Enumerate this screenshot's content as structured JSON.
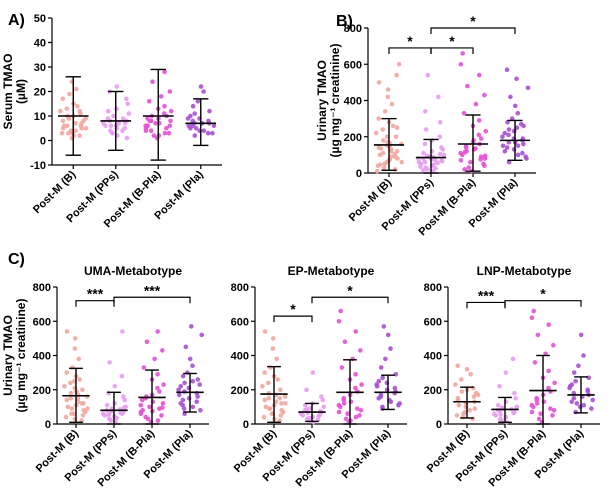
{
  "chart_data": [
    {
      "id": "A",
      "panel_label": "A)",
      "type": "scatter",
      "title": "",
      "ylabel": [
        "Serum TMAO",
        "(µM)"
      ],
      "ylim": [
        -10,
        50
      ],
      "yticks": [
        -10,
        0,
        10,
        20,
        30,
        40,
        50
      ],
      "categories": [
        "Post-M (B)",
        "Post-M (PPs)",
        "Post-M (B-Pla)",
        "Post-M (Pla)"
      ],
      "colors": [
        "#f4a6a0",
        "#e79df0",
        "#e84fd6",
        "#a84fd6"
      ],
      "summary": [
        {
          "mean": 10,
          "sd_low": -6,
          "sd_high": 26
        },
        {
          "mean": 8,
          "sd_low": -4,
          "sd_high": 20
        },
        {
          "mean": 10,
          "sd_low": -8,
          "sd_high": 29
        },
        {
          "mean": 7,
          "sd_low": -2,
          "sd_high": 17
        }
      ],
      "points": [
        [
          2,
          3,
          4,
          5,
          6,
          7,
          8,
          9,
          10,
          11,
          12,
          13,
          14,
          15,
          17,
          19,
          21,
          24,
          3,
          5,
          6,
          8,
          9,
          10,
          4,
          6,
          7,
          2,
          1,
          3,
          5,
          12
        ],
        [
          2,
          3,
          4,
          5,
          6,
          7,
          8,
          9,
          10,
          11,
          12,
          13,
          15,
          17,
          20,
          22,
          5,
          6,
          7,
          8,
          9,
          3,
          4,
          1,
          6,
          7
        ],
        [
          1,
          2,
          3,
          4,
          5,
          6,
          7,
          8,
          9,
          10,
          11,
          12,
          13,
          14,
          16,
          18,
          20,
          24,
          28,
          5,
          6,
          7,
          8,
          9,
          10,
          4,
          3,
          2,
          6,
          8
        ],
        [
          2,
          3,
          4,
          5,
          6,
          7,
          8,
          9,
          10,
          11,
          12,
          14,
          16,
          20,
          22,
          5,
          6,
          7,
          8,
          3,
          4,
          6,
          7,
          9
        ]
      ],
      "brackets": []
    },
    {
      "id": "B",
      "panel_label": "B)",
      "type": "scatter",
      "title": "",
      "ylabel": [
        "Urinary TMAO",
        "(µg mg⁻¹ creatinine)"
      ],
      "ylim": [
        0,
        800
      ],
      "yticks": [
        0,
        200,
        400,
        600,
        800
      ],
      "categories": [
        "Post-M (B)",
        "Post-M (PPs)",
        "Post-M (B-Pla)",
        "Post-M (Pla)"
      ],
      "colors": [
        "#f4a6a0",
        "#e79df0",
        "#e84fd6",
        "#a84fd6"
      ],
      "summary": [
        {
          "mean": 155,
          "sd_low": 15,
          "sd_high": 300
        },
        {
          "mean": 85,
          "sd_low": 0,
          "sd_high": 185
        },
        {
          "mean": 160,
          "sd_low": 10,
          "sd_high": 320
        },
        {
          "mean": 180,
          "sd_low": 70,
          "sd_high": 290
        }
      ],
      "points": [
        [
          20,
          40,
          60,
          80,
          100,
          120,
          140,
          160,
          180,
          200,
          220,
          240,
          260,
          280,
          300,
          340,
          380,
          420,
          460,
          500,
          540,
          600,
          50,
          70,
          90,
          110,
          130,
          150,
          170,
          30,
          60,
          90,
          120,
          150,
          200,
          250,
          10,
          45,
          75,
          105,
          135,
          165
        ],
        [
          10,
          20,
          30,
          40,
          50,
          60,
          70,
          80,
          90,
          100,
          110,
          120,
          130,
          140,
          160,
          180,
          200,
          240,
          280,
          340,
          420,
          540,
          55,
          65,
          75,
          85,
          95,
          105,
          45,
          35,
          25,
          15,
          60,
          70,
          80,
          90
        ],
        [
          10,
          30,
          50,
          70,
          90,
          110,
          130,
          150,
          170,
          190,
          210,
          230,
          260,
          290,
          330,
          380,
          430,
          480,
          540,
          600,
          660,
          60,
          80,
          100,
          120,
          140,
          160,
          180,
          40,
          20,
          75,
          95,
          115,
          135
        ],
        [
          60,
          80,
          100,
          120,
          140,
          160,
          180,
          200,
          220,
          240,
          260,
          280,
          300,
          330,
          370,
          420,
          470,
          520,
          570,
          110,
          130,
          150,
          170,
          190,
          210,
          90,
          150,
          170,
          190,
          230,
          250,
          270
        ]
      ],
      "brackets": [
        {
          "from": 0,
          "to": 1,
          "y": 690,
          "label": "*"
        },
        {
          "from": 1,
          "to": 2,
          "y": 690,
          "label": "*"
        },
        {
          "from": 1,
          "to": 3,
          "y": 800,
          "label": "*"
        }
      ]
    },
    {
      "id": "C1",
      "panel_label": "C)",
      "type": "scatter",
      "title": "UMA-Metabotype",
      "ylabel": [
        "Urinary TMAO",
        "(µg mg⁻¹ creatinine)"
      ],
      "ylim": [
        0,
        800
      ],
      "yticks": [
        0,
        200,
        400,
        600,
        800
      ],
      "categories": [
        "Post-M (B)",
        "Post-M (PPs)",
        "Post-M (B-Pla)",
        "Post-M (Pla)"
      ],
      "colors": [
        "#f4a6a0",
        "#e79df0",
        "#e84fd6",
        "#a84fd6"
      ],
      "summary": [
        {
          "mean": 165,
          "sd_low": 10,
          "sd_high": 325
        },
        {
          "mean": 80,
          "sd_low": 0,
          "sd_high": 185
        },
        {
          "mean": 155,
          "sd_low": 0,
          "sd_high": 315
        },
        {
          "mean": 185,
          "sd_low": 70,
          "sd_high": 295
        }
      ],
      "points": [
        [
          20,
          40,
          60,
          80,
          100,
          120,
          140,
          160,
          180,
          200,
          220,
          240,
          260,
          280,
          300,
          330,
          380,
          440,
          500,
          540,
          50,
          70,
          90,
          110,
          130,
          150,
          170,
          190,
          30,
          60,
          90,
          120,
          150,
          210,
          250
        ],
        [
          10,
          20,
          30,
          40,
          50,
          60,
          70,
          80,
          90,
          100,
          110,
          120,
          140,
          160,
          180,
          220,
          280,
          360,
          540,
          55,
          65,
          75,
          85,
          95,
          45,
          35,
          25,
          60
        ],
        [
          10,
          30,
          50,
          70,
          90,
          110,
          130,
          150,
          170,
          190,
          210,
          230,
          260,
          290,
          330,
          380,
          430,
          480,
          540,
          60,
          80,
          100,
          120,
          140,
          160,
          40,
          20,
          75,
          95
        ],
        [
          60,
          80,
          100,
          120,
          140,
          160,
          180,
          200,
          220,
          240,
          260,
          280,
          300,
          340,
          380,
          450,
          520,
          570,
          110,
          130,
          150,
          170,
          190,
          210,
          90,
          230,
          250
        ]
      ],
      "brackets": [
        {
          "from": 0,
          "to": 1,
          "y": 720,
          "label": "***"
        },
        {
          "from": 1,
          "to": 3,
          "y": 740,
          "label": "***"
        }
      ]
    },
    {
      "id": "C2",
      "panel_label": "",
      "type": "scatter",
      "title": "EP-Metabotype",
      "ylabel": [],
      "ylim": [
        0,
        800
      ],
      "yticks": [
        0,
        200,
        400,
        600,
        800
      ],
      "categories": [
        "Post-M (B)",
        "Post-M (PPs)",
        "Post-M (B-Pla)",
        "Post-M (Pla)"
      ],
      "colors": [
        "#f4a6a0",
        "#e79df0",
        "#e84fd6",
        "#a84fd6"
      ],
      "summary": [
        {
          "mean": 175,
          "sd_low": 10,
          "sd_high": 335
        },
        {
          "mean": 70,
          "sd_low": 15,
          "sd_high": 120
        },
        {
          "mean": 185,
          "sd_low": 0,
          "sd_high": 375
        },
        {
          "mean": 185,
          "sd_low": 85,
          "sd_high": 285
        }
      ],
      "points": [
        [
          20,
          40,
          60,
          80,
          100,
          120,
          140,
          160,
          180,
          200,
          220,
          240,
          260,
          280,
          300,
          330,
          380,
          440,
          500,
          540,
          50,
          70,
          90,
          110,
          130,
          150,
          170,
          30,
          60,
          90,
          120,
          150
        ],
        [
          10,
          20,
          30,
          40,
          50,
          60,
          70,
          80,
          90,
          100,
          110,
          120,
          140,
          160,
          200,
          300,
          55,
          65,
          75,
          85,
          45,
          35,
          25
        ],
        [
          10,
          30,
          50,
          70,
          90,
          110,
          130,
          150,
          170,
          190,
          210,
          230,
          260,
          290,
          330,
          380,
          430,
          480,
          540,
          600,
          660,
          60,
          80,
          100,
          120,
          140,
          40,
          20
        ],
        [
          90,
          110,
          130,
          150,
          170,
          190,
          210,
          230,
          250,
          270,
          290,
          330,
          380,
          440,
          520,
          570,
          120,
          140,
          160,
          180,
          200,
          220,
          100,
          240
        ]
      ],
      "brackets": [
        {
          "from": 0,
          "to": 1,
          "y": 630,
          "label": "*"
        },
        {
          "from": 1,
          "to": 3,
          "y": 740,
          "label": "*"
        }
      ]
    },
    {
      "id": "C3",
      "panel_label": "",
      "type": "scatter",
      "title": "LNP-Metabotype",
      "ylabel": [],
      "ylim": [
        0,
        800
      ],
      "yticks": [
        0,
        200,
        400,
        600,
        800
      ],
      "categories": [
        "Post-M (B)",
        "Post-M (PPs)",
        "Post-M (B-Pla)",
        "Post-M (Pla)"
      ],
      "colors": [
        "#f4a6a0",
        "#e79df0",
        "#e84fd6",
        "#a84fd6"
      ],
      "summary": [
        {
          "mean": 130,
          "sd_low": 35,
          "sd_high": 215
        },
        {
          "mean": 85,
          "sd_low": 10,
          "sd_high": 155
        },
        {
          "mean": 195,
          "sd_low": 0,
          "sd_high": 400
        },
        {
          "mean": 170,
          "sd_low": 65,
          "sd_high": 275
        }
      ],
      "points": [
        [
          30,
          50,
          70,
          90,
          110,
          130,
          150,
          170,
          190,
          210,
          230,
          260,
          290,
          320,
          340,
          60,
          80,
          100,
          120,
          140,
          160,
          180,
          40,
          200
        ],
        [
          10,
          20,
          30,
          40,
          50,
          60,
          70,
          80,
          90,
          100,
          110,
          130,
          150,
          180,
          220,
          300,
          380,
          55,
          65,
          75,
          85,
          95
        ],
        [
          10,
          30,
          50,
          70,
          90,
          110,
          130,
          150,
          170,
          190,
          210,
          240,
          270,
          310,
          360,
          410,
          460,
          520,
          580,
          620,
          660,
          60,
          80,
          100,
          120,
          140
        ],
        [
          70,
          90,
          110,
          130,
          150,
          170,
          190,
          210,
          230,
          250,
          270,
          300,
          340,
          400,
          520,
          120,
          140,
          160,
          180,
          200,
          100,
          220
        ]
      ],
      "brackets": [
        {
          "from": 0,
          "to": 1,
          "y": 710,
          "label": "***"
        },
        {
          "from": 1,
          "to": 3,
          "y": 720,
          "label": "*"
        }
      ]
    }
  ]
}
